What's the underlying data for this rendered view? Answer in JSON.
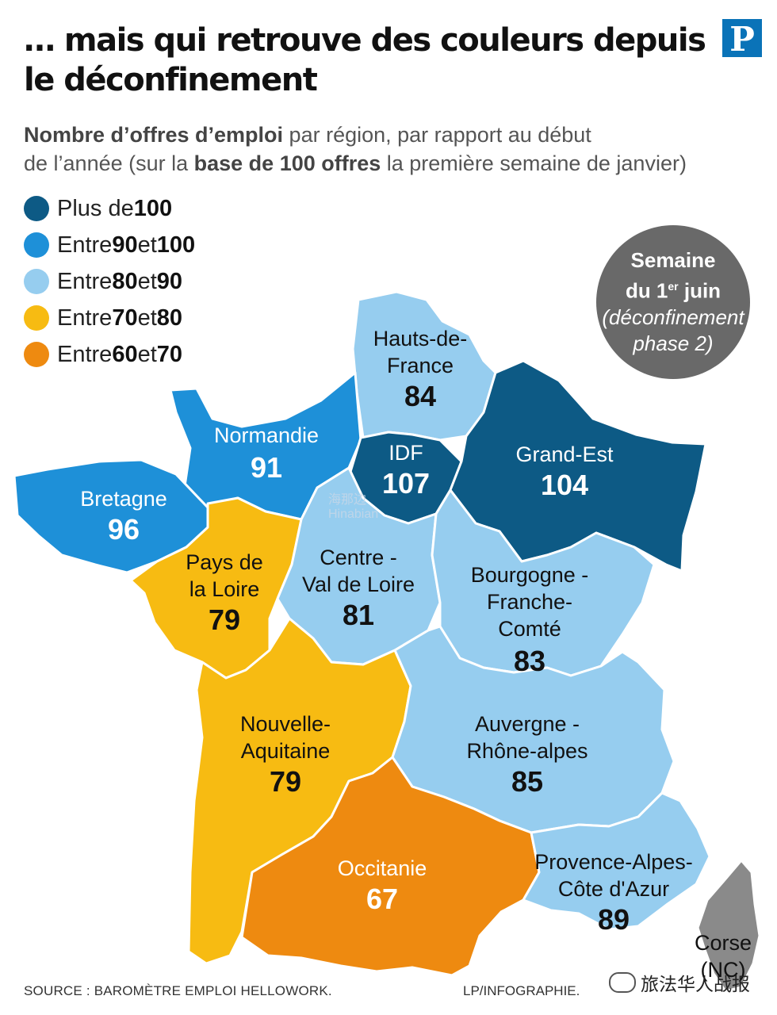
{
  "header": {
    "title_line1": "… mais qui retrouve des couleurs depuis",
    "title_line2": "le déconfinement",
    "logo_letter": "P"
  },
  "subtitle": {
    "line1_bold": "Nombre d’offres d’emploi",
    "line1_rest": " par région, par rapport au début",
    "line2_start": "de l’année (sur la ",
    "line2_bold": "base de 100 offres",
    "line2_end": " la première semaine de janvier)"
  },
  "legend": [
    {
      "prefix": "Plus de ",
      "a": "100",
      "mid": "",
      "b": "",
      "color": "#0d5a85"
    },
    {
      "prefix": "Entre ",
      "a": "90",
      "mid": " et ",
      "b": "100",
      "color": "#1e90d8"
    },
    {
      "prefix": "Entre ",
      "a": "80",
      "mid": " et ",
      "b": "90",
      "color": "#96cdef"
    },
    {
      "prefix": "Entre ",
      "a": "70",
      "mid": " et ",
      "b": "80",
      "color": "#f7bb12"
    },
    {
      "prefix": "Entre ",
      "a": "60",
      "mid": " et ",
      "b": "70",
      "color": "#ee8a10"
    }
  ],
  "bubble": {
    "line1": "Semaine",
    "line2_pre": "du 1",
    "line2_sup": "er",
    "line2_post": " juin",
    "line3": "(déconfinement",
    "line4": "phase 2)"
  },
  "regions": {
    "hauts_de_france": {
      "name1": "Hauts-de-",
      "name2": "France",
      "value": "84",
      "color": "#96cdef"
    },
    "normandie": {
      "name1": "Normandie",
      "value": "91",
      "color": "#1e90d8"
    },
    "idf": {
      "name1": "IDF",
      "value": "107",
      "color": "#0d5a85"
    },
    "grand_est": {
      "name1": "Grand-Est",
      "value": "104",
      "color": "#0d5a85"
    },
    "bretagne": {
      "name1": "Bretagne",
      "value": "96",
      "color": "#1e90d8"
    },
    "pays_de_la_loire": {
      "name1": "Pays de",
      "name2": "la Loire",
      "value": "79",
      "color": "#f7bb12"
    },
    "centre_val_de_loire": {
      "name1": "Centre -",
      "name2": "Val de Loire",
      "value": "81",
      "color": "#96cdef"
    },
    "bourgogne_franche_comte": {
      "name1": "Bourgogne -",
      "name2": "Franche-",
      "name3": "Comté",
      "value": "83",
      "color": "#96cdef"
    },
    "nouvelle_aquitaine": {
      "name1": "Nouvelle-",
      "name2": "Aquitaine",
      "value": "79",
      "color": "#f7bb12"
    },
    "auvergne_rhone_alpes": {
      "name1": "Auvergne -",
      "name2": "Rhône-alpes",
      "value": "85",
      "color": "#96cdef"
    },
    "occitanie": {
      "name1": "Occitanie",
      "value": "67",
      "color": "#ee8a10"
    },
    "paca": {
      "name1": "Provence-Alpes-",
      "name2": "Côte d'Azur",
      "value": "89",
      "color": "#96cdef"
    },
    "corse": {
      "name1": "Corse",
      "value": "(NC)",
      "color": "#8a8a8a"
    }
  },
  "footer": {
    "source": "SOURCE : BAROMÈTRE EMPLOI HELLOWORK.",
    "credit": "LP/INFOGRAPHIE.",
    "wechat": "旅法华人战报",
    "watermark1": "海那边",
    "watermark2": "Hinabian"
  }
}
